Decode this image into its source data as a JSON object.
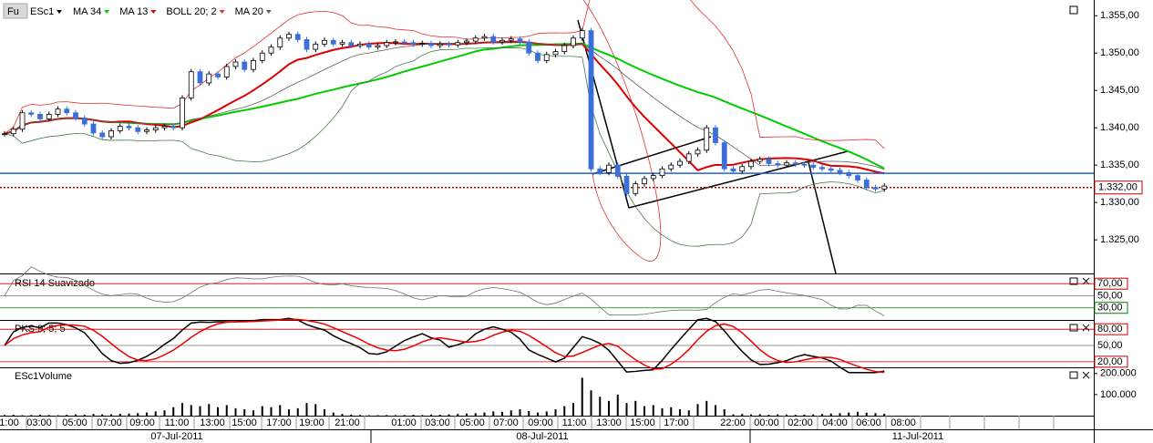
{
  "badge": "Fu",
  "symbol": "ESc1",
  "indicators": [
    {
      "name": "MA 34",
      "color": "#00cc00"
    },
    {
      "name": "MA 13",
      "color": "#dd0000"
    },
    {
      "name": "BOLL 20; 2",
      "color": "#e03030",
      "lower_color": "#4a7a4a"
    },
    {
      "name": "MA 20",
      "color": "#606060"
    }
  ],
  "price_axis": {
    "ylim": [
      1.3205,
      1.3571
    ],
    "ticks": [
      {
        "value": 1.355,
        "label": "1.355,00"
      },
      {
        "value": 1.35,
        "label": "1.350,00"
      },
      {
        "value": 1.345,
        "label": "1.345,00"
      },
      {
        "value": 1.34,
        "label": "1.340,00"
      },
      {
        "value": 1.335,
        "label": "1.335,00"
      },
      {
        "value": 1.33,
        "label": "1.330,00"
      },
      {
        "value": 1.325,
        "label": "1.325,00"
      }
    ]
  },
  "candles": {
    "up_color": "#ffffff",
    "down_color": "#3a6fd8",
    "closes": [
      1.3392,
      1.3398,
      1.342,
      1.3418,
      1.3412,
      1.3418,
      1.3425,
      1.342,
      1.3413,
      1.3405,
      1.3393,
      1.3388,
      1.3396,
      1.3402,
      1.34,
      1.3395,
      1.3397,
      1.34,
      1.3402,
      1.34,
      1.344,
      1.3475,
      1.346,
      1.3472,
      1.3468,
      1.3482,
      1.3488,
      1.3478,
      1.349,
      1.35,
      1.3508,
      1.352,
      1.3525,
      1.3518,
      1.3505,
      1.3512,
      1.3517,
      1.3512,
      1.3514,
      1.351,
      1.3512,
      1.3508,
      1.351,
      1.3514,
      1.3515,
      1.3514,
      1.3512,
      1.3513,
      1.351,
      1.3512,
      1.3511,
      1.3514,
      1.3516,
      1.352,
      1.3522,
      1.3515,
      1.3517,
      1.3519,
      1.3515,
      1.35,
      1.349,
      1.3498,
      1.3502,
      1.351,
      1.352,
      1.353,
      1.3345,
      1.334,
      1.335,
      1.3335,
      1.3312,
      1.3325,
      1.3332,
      1.3336,
      1.3345,
      1.335,
      1.3355,
      1.3365,
      1.337,
      1.34,
      1.338,
      1.3345,
      1.3342,
      1.3348,
      1.3355,
      1.3358,
      1.3352,
      1.335,
      1.3353,
      1.3351,
      1.335,
      1.3347,
      1.3345,
      1.3343,
      1.334,
      1.3336,
      1.333,
      1.332,
      1.3318,
      1.3322
    ]
  },
  "levels": [
    {
      "value": 1.3339,
      "color": "#1f5fdc",
      "style": "solid"
    },
    {
      "value": 1.332,
      "label": "1.332,00",
      "color": "#c00000",
      "style": "dotted"
    }
  ],
  "rsi": {
    "name": "RSI 14 Suavizado",
    "color": "#707070",
    "ylim": [
      10,
      86.9
    ],
    "ticks": [
      {
        "value": 70,
        "label": "70,00",
        "color": "#c00000"
      },
      {
        "value": 50,
        "label": "50,00",
        "color": "#707070"
      },
      {
        "value": 30,
        "label": "30,00",
        "color": "#008000"
      }
    ]
  },
  "pks": {
    "name": "PKS 9; 5; 5",
    "k_color": "#000000",
    "d_color": "#ee0000",
    "ylim": [
      9.7,
      95.4
    ],
    "ticks": [
      {
        "value": 80,
        "label": "80,00",
        "color": "#c00000"
      },
      {
        "value": 50,
        "label": "50,00",
        "color": "#707070"
      },
      {
        "value": 20,
        "label": "20,00",
        "color": "#c00000"
      }
    ]
  },
  "volume": {
    "name": "ESc1Volume",
    "ylim": [
      0,
      225000
    ],
    "ticks": [
      {
        "value": 200000,
        "label": "200.000"
      },
      {
        "value": 100000,
        "label": "100.000"
      }
    ],
    "values": [
      3000,
      4000,
      2000,
      3000,
      5000,
      3000,
      2000,
      4000,
      6000,
      5000,
      8000,
      6000,
      7000,
      9000,
      10000,
      12000,
      15000,
      20000,
      25000,
      40000,
      60000,
      50000,
      45000,
      55000,
      40000,
      50000,
      35000,
      30000,
      25000,
      45000,
      40000,
      50000,
      30000,
      35000,
      60000,
      55000,
      30000,
      15000,
      8000,
      5000,
      3000,
      2000,
      2000,
      3000,
      2000,
      3000,
      4000,
      3000,
      5000,
      4000,
      6000,
      8000,
      10000,
      12000,
      15000,
      20000,
      18000,
      25000,
      30000,
      22000,
      15000,
      20000,
      30000,
      45000,
      60000,
      180000,
      120000,
      90000,
      70000,
      100000,
      60000,
      70000,
      45000,
      50000,
      35000,
      40000,
      30000,
      25000,
      55000,
      70000,
      50000,
      30000,
      6000,
      8000,
      5000,
      7000,
      4000,
      6000,
      5000,
      4000,
      5000,
      6000,
      8000,
      10000,
      12000,
      15000,
      18000,
      14000,
      12000,
      9000
    ]
  },
  "time_axis": {
    "labels": [
      "1:00",
      "03:00",
      "05:00",
      "07:00",
      "09:00",
      "11:00",
      "13:00",
      "15:00",
      "17:00",
      "19:00",
      "21:00",
      "01:00",
      "03:00",
      "05:00",
      "07:00",
      "09:00",
      "11:00",
      "13:00",
      "15:00",
      "17:00",
      "22:00",
      "00:00",
      "02:00",
      "04:00",
      "06:00",
      "08:00"
    ],
    "dates": [
      "07-Jul-2011",
      "08-Jul-2011",
      "11-Jul-2011"
    ]
  }
}
